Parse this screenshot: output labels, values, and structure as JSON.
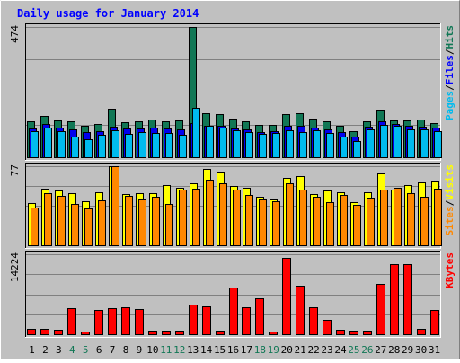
{
  "chart_data": {
    "type": "bar",
    "title": "Daily usage for January 2014",
    "categories": [
      "1",
      "2",
      "3",
      "4",
      "5",
      "6",
      "7",
      "8",
      "9",
      "10",
      "11",
      "12",
      "13",
      "14",
      "15",
      "16",
      "17",
      "18",
      "19",
      "20",
      "21",
      "22",
      "23",
      "24",
      "25",
      "26",
      "27",
      "28",
      "29",
      "30",
      "31"
    ],
    "weekend_days": [
      "4",
      "5",
      "11",
      "12",
      "18",
      "19",
      "25",
      "26"
    ],
    "grid": true,
    "panels": [
      {
        "id": "hits",
        "ymax": 474,
        "ymax_label": "474",
        "ylabel_parts": [
          "Pages",
          "Files",
          "Hits"
        ],
        "series": [
          {
            "name": "Hits",
            "color": "#117755",
            "values": [
              130,
              150,
              135,
              130,
              115,
              120,
              176,
              128,
              132,
              138,
              130,
              133,
              474,
              161,
              156,
              140,
              130,
              117,
              117,
              157,
              160,
              140,
              132,
              116,
              96,
              132,
              172,
              133,
              134,
              137,
              124
            ]
          },
          {
            "name": "Files",
            "color": "#0000ee",
            "values": [
              105,
              120,
              108,
              100,
              90,
              96,
              110,
              104,
              104,
              108,
              104,
              101,
              123,
              114,
              113,
              106,
              100,
              93,
              96,
              113,
              113,
              108,
              100,
              90,
              75,
              110,
              131,
              121,
              113,
              111,
              108
            ]
          },
          {
            "name": "Pages",
            "color": "#00bbee",
            "values": [
              95,
              108,
              96,
              76,
              65,
              83,
              99,
              85,
              90,
              89,
              89,
              83,
              180,
              115,
              108,
              98,
              90,
              86,
              89,
              98,
              92,
              99,
              89,
              75,
              58,
              102,
              118,
              114,
              102,
              100,
              94
            ]
          }
        ]
      },
      {
        "id": "visits",
        "ymax": 77,
        "ymax_label": "77",
        "ylabel_parts": [
          "Sites",
          "Visits"
        ],
        "series": [
          {
            "name": "Visits",
            "color": "#ffff00",
            "values": [
              41,
              55,
              53,
              51,
              43,
              52,
              77,
              50,
              51,
              51,
              59,
              56,
              60,
              74,
              72,
              58,
              56,
              47,
              45,
              66,
              67,
              50,
              53,
              52,
              42,
              52,
              70,
              54,
              59,
              61,
              63
            ]
          },
          {
            "name": "Sites",
            "color": "#ff8800",
            "values": [
              37,
              51,
              48,
              40,
              36,
              44,
              77,
              48,
              45,
              47,
              40,
              54,
              55,
              64,
              60,
              54,
              49,
              45,
              43,
              60,
              54,
              47,
              42,
              49,
              39,
              46,
              54,
              56,
              51,
              47,
              55
            ]
          }
        ]
      },
      {
        "id": "kbytes",
        "ymax": 14224,
        "ymax_label": "14224",
        "ylabel_parts": [
          "KBytes"
        ],
        "series": [
          {
            "name": "KBytes",
            "color": "#ff0000",
            "values": [
              900,
              900,
              800,
              4600,
              400,
              4300,
              4700,
              4800,
              4500,
              700,
              700,
              600,
              5300,
              4900,
              700,
              8300,
              4800,
              6400,
              500,
              13600,
              8600,
              4800,
              2600,
              800,
              600,
              600,
              9000,
              12400,
              12400,
              1000,
              4300
            ]
          }
        ]
      }
    ]
  },
  "colors": {
    "background": "#c0c0c0",
    "title": "#0000ff",
    "pages": "#00bbee",
    "files": "#0000ff",
    "hits": "#117755",
    "visits": "#ffff00",
    "sites": "#ff8800",
    "kbytes": "#ff0000",
    "weekday_label": "#000000",
    "weekend_label": "#117755"
  }
}
